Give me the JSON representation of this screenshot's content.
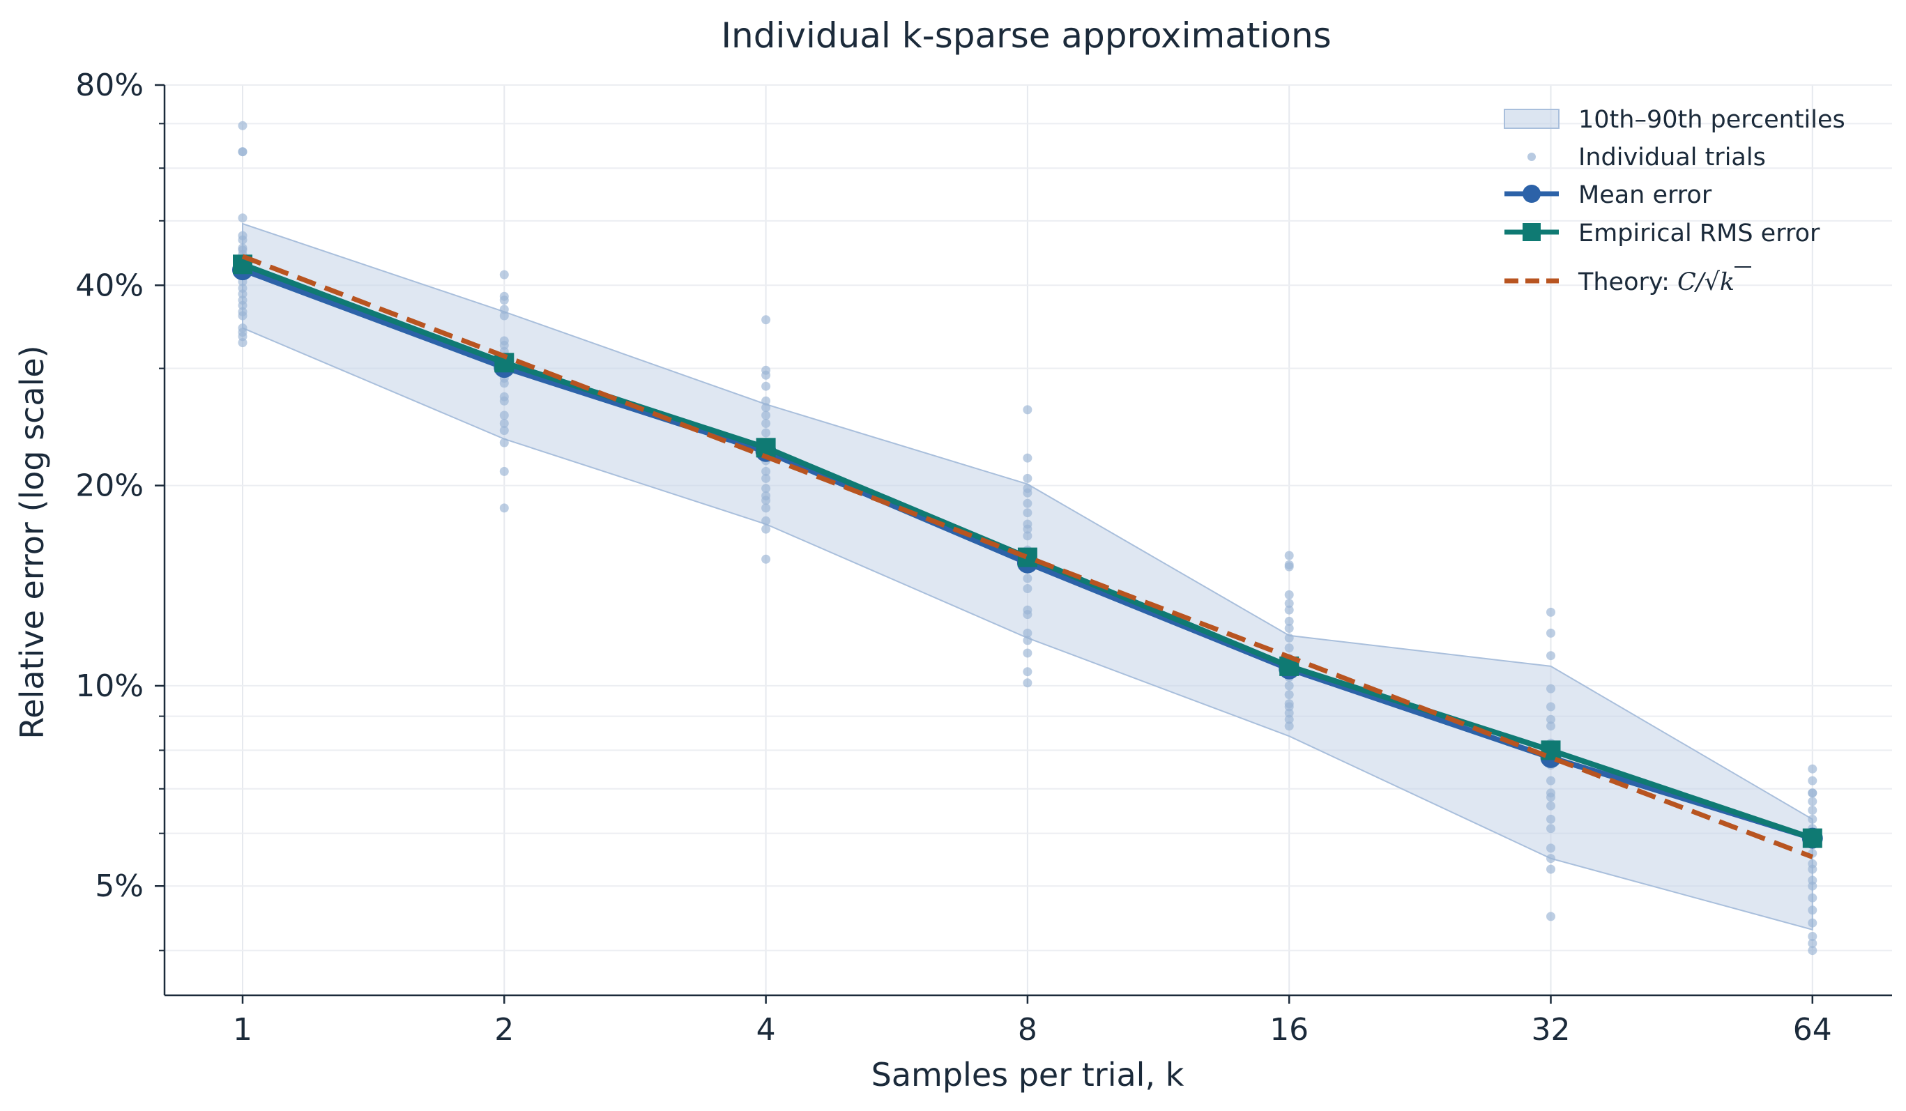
{
  "chart_data": {
    "type": "line",
    "title": "Individual k-sparse approximations",
    "xlabel": "Samples per trial, k",
    "ylabel": "Relative error (log scale)",
    "x_scale": "log2",
    "y_scale": "log",
    "x_ticks": [
      1,
      2,
      4,
      8,
      16,
      32,
      64
    ],
    "x_tick_labels": [
      "1",
      "2",
      "4",
      "8",
      "16",
      "32",
      "64"
    ],
    "y_ticks": [
      0.05,
      0.1,
      0.2,
      0.4,
      0.8
    ],
    "y_tick_labels": [
      "5%",
      "10%",
      "20%",
      "40%",
      "80%"
    ],
    "ylim": [
      0.038,
      0.8
    ],
    "xlim": [
      0.75,
      85
    ],
    "grid": true,
    "legend_position": "top-right",
    "x": [
      1,
      2,
      4,
      8,
      16,
      32,
      64
    ],
    "band": {
      "name": "10th–90th percentiles",
      "lower": [
        0.345,
        0.235,
        0.175,
        0.118,
        0.084,
        0.055,
        0.043
      ],
      "upper": [
        0.495,
        0.365,
        0.265,
        0.201,
        0.119,
        0.107,
        0.063
      ],
      "color": "#c5d4e8"
    },
    "series": [
      {
        "name": "Mean error",
        "values": [
          0.422,
          0.301,
          0.225,
          0.153,
          0.106,
          0.078,
          0.059
        ],
        "color": "#2c62a8",
        "marker": "circle"
      },
      {
        "name": "Empirical RMS error",
        "values": [
          0.43,
          0.306,
          0.228,
          0.156,
          0.107,
          0.08,
          0.059
        ],
        "color": "#0f7a73",
        "marker": "square"
      },
      {
        "name": "Theory: C/√k",
        "values": [
          0.442,
          0.313,
          0.221,
          0.156,
          0.1105,
          0.078,
          0.0553
        ],
        "color": "#b85420",
        "marker": "none",
        "dash": "dashed"
      }
    ],
    "trials": {
      "name": "Individual trials",
      "color": "#9ab3d4",
      "points": [
        {
          "x": 1,
          "y": [
            0.695,
            0.635,
            0.635,
            0.505,
            0.475,
            0.468,
            0.455,
            0.452,
            0.445,
            0.43,
            0.422,
            0.418,
            0.405,
            0.396,
            0.388,
            0.38,
            0.373,
            0.365,
            0.36,
            0.345,
            0.34,
            0.335,
            0.328
          ]
        },
        {
          "x": 2,
          "y": [
            0.415,
            0.385,
            0.38,
            0.368,
            0.36,
            0.33,
            0.325,
            0.318,
            0.312,
            0.305,
            0.298,
            0.29,
            0.285,
            0.272,
            0.268,
            0.255,
            0.248,
            0.242,
            0.232,
            0.21,
            0.185
          ]
        },
        {
          "x": 4,
          "y": [
            0.355,
            0.298,
            0.293,
            0.282,
            0.268,
            0.262,
            0.255,
            0.248,
            0.24,
            0.232,
            0.226,
            0.222,
            0.218,
            0.21,
            0.205,
            0.198,
            0.193,
            0.19,
            0.185,
            0.177,
            0.172,
            0.155
          ]
        },
        {
          "x": 8,
          "y": [
            0.26,
            0.22,
            0.205,
            0.198,
            0.195,
            0.188,
            0.182,
            0.175,
            0.172,
            0.168,
            0.16,
            0.155,
            0.15,
            0.145,
            0.14,
            0.13,
            0.128,
            0.12,
            0.117,
            0.112,
            0.105,
            0.101
          ]
        },
        {
          "x": 16,
          "y": [
            0.157,
            0.152,
            0.151,
            0.137,
            0.133,
            0.13,
            0.125,
            0.122,
            0.118,
            0.114,
            0.11,
            0.106,
            0.103,
            0.1,
            0.097,
            0.094,
            0.093,
            0.091,
            0.089,
            0.087
          ]
        },
        {
          "x": 32,
          "y": [
            0.129,
            0.12,
            0.111,
            0.099,
            0.093,
            0.089,
            0.087,
            0.082,
            0.078,
            0.076,
            0.072,
            0.069,
            0.068,
            0.066,
            0.063,
            0.061,
            0.057,
            0.055,
            0.053,
            0.045
          ]
        },
        {
          "x": 64,
          "y": [
            0.075,
            0.072,
            0.069,
            0.069,
            0.067,
            0.065,
            0.063,
            0.061,
            0.06,
            0.058,
            0.056,
            0.054,
            0.053,
            0.051,
            0.05,
            0.048,
            0.046,
            0.044,
            0.042,
            0.041,
            0.04
          ]
        }
      ]
    }
  },
  "legend": {
    "band_label": "10th–90th percentiles",
    "trials_label": "Individual trials",
    "mean_label": "Mean error",
    "rms_label": "Empirical RMS error",
    "theory_prefix": "Theory: ",
    "theory_formula_c": "C/",
    "theory_formula_k": "k"
  }
}
